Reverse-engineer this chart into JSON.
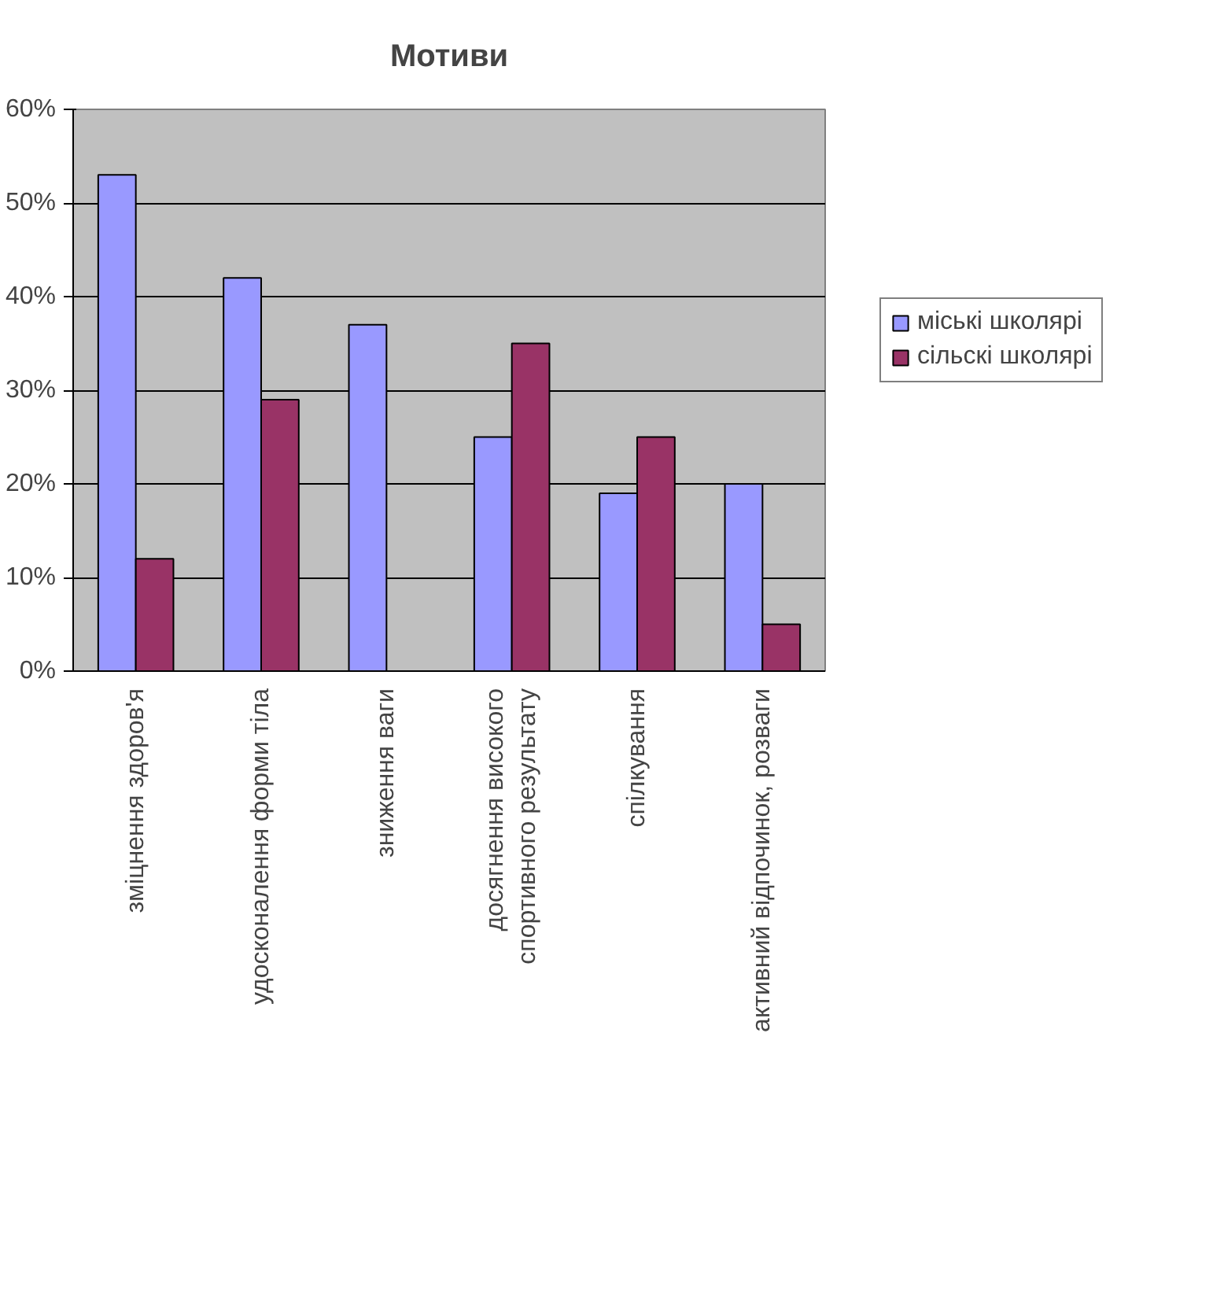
{
  "chart_data": {
    "type": "bar",
    "title": "Мотиви",
    "categories": [
      "зміцнення здоров'я",
      "удосконалення форми тіла",
      "зниження ваги",
      "досягнення високого спортивного результату",
      "спілкування",
      "активний відпочинок, розваги"
    ],
    "series": [
      {
        "name": "міські школярі",
        "color": "#9999ff",
        "values": [
          53,
          42,
          37,
          25,
          19,
          20
        ]
      },
      {
        "name": "сільскі школярі",
        "color": "#993366",
        "values": [
          12,
          29,
          null,
          35,
          25,
          5
        ]
      }
    ],
    "ylim": [
      0,
      60
    ],
    "yticks": [
      {
        "value": 0,
        "label": "0%"
      },
      {
        "value": 10,
        "label": "10%"
      },
      {
        "value": 20,
        "label": "20%"
      },
      {
        "value": 30,
        "label": "30%"
      },
      {
        "value": 40,
        "label": "40%"
      },
      {
        "value": 50,
        "label": "50%"
      },
      {
        "value": 60,
        "label": "60%"
      }
    ],
    "grid": "y",
    "legend": "right"
  }
}
